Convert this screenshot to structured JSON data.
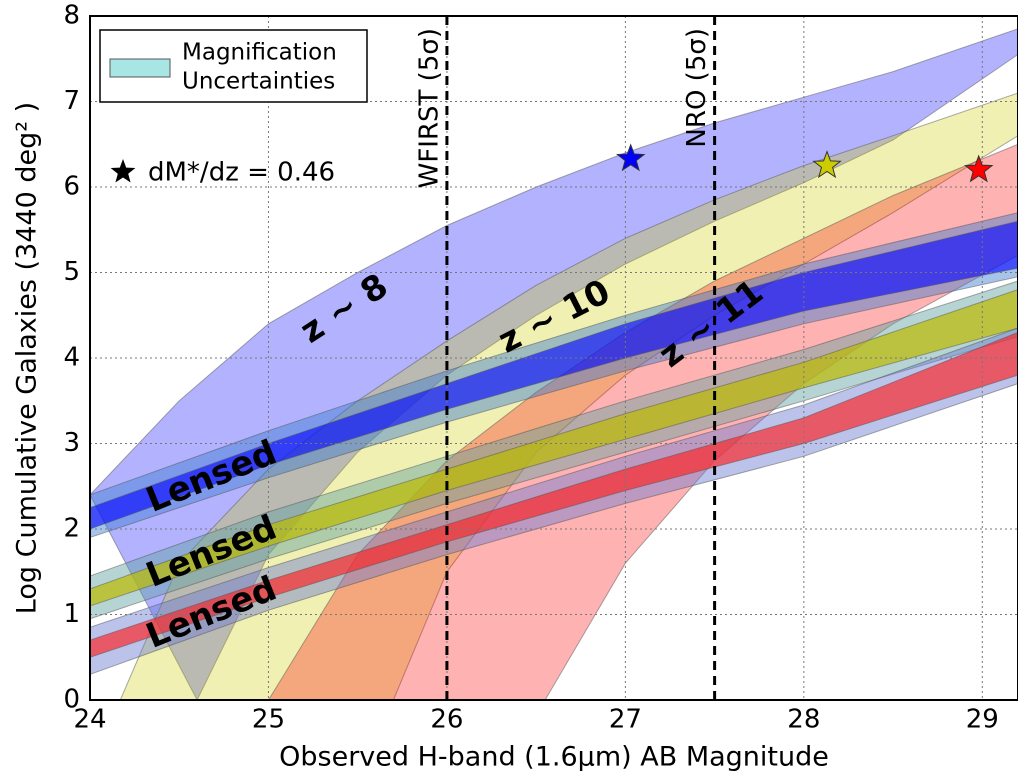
{
  "chart_data": {
    "type": "band",
    "xlabel": "Observed H-band (1.6μm) AB Magnitude",
    "ylabel": "Log Cumulative Galaxies (3440 deg² )",
    "xlim": [
      24,
      29.2
    ],
    "ylim": [
      0,
      8
    ],
    "xticks": [
      24,
      25,
      26,
      27,
      28,
      29
    ],
    "yticks": [
      0,
      1,
      2,
      3,
      4,
      5,
      6,
      7,
      8
    ],
    "grid": true,
    "legend": {
      "position": "upper left",
      "lines": [
        "Magnification",
        "Uncertainties"
      ],
      "color": "#a8e6e6"
    },
    "series": [
      {
        "color": "#0000ff",
        "alpha": 0.3,
        "x_upper": [
          24,
          24.5,
          25,
          25.5,
          26,
          26.5,
          27,
          27.5,
          28,
          28.5,
          29.2
        ],
        "upper": [
          2.4,
          3.5,
          4.4,
          5.0,
          5.55,
          6.0,
          6.4,
          6.75,
          7.05,
          7.35,
          7.85
        ],
        "x_lower": [
          24.6,
          25,
          25.5,
          26,
          26.5,
          27,
          27.5,
          28,
          28.5,
          29.2
        ],
        "lower": [
          0,
          1.7,
          2.9,
          3.8,
          4.5,
          5.1,
          5.6,
          6.05,
          6.55,
          7.55
        ]
      },
      {
        "color": "#cccc00",
        "alpha": 0.3,
        "x_upper": [
          24.17,
          24.5,
          25,
          25.5,
          26,
          26.5,
          27,
          27.5,
          28,
          28.5,
          29.2
        ],
        "upper": [
          0,
          1.6,
          2.7,
          3.5,
          4.2,
          4.85,
          5.4,
          5.85,
          6.25,
          6.6,
          7.1
        ],
        "x_lower": [
          25.7,
          26,
          26.5,
          27,
          27.5,
          28,
          28.5,
          29.2
        ],
        "lower": [
          0,
          1.5,
          2.9,
          3.8,
          4.5,
          5.1,
          5.7,
          6.6
        ]
      },
      {
        "color": "#ff0000",
        "alpha": 0.3,
        "x_upper": [
          25.0,
          25.5,
          26,
          26.5,
          27,
          27.5,
          28,
          28.5,
          29.2
        ],
        "upper": [
          0,
          1.7,
          2.8,
          3.6,
          4.3,
          4.9,
          5.4,
          5.9,
          6.5
        ],
        "x_lower": [
          26.55,
          27,
          27.5,
          28,
          28.5,
          29.2
        ],
        "lower": [
          0,
          1.6,
          2.8,
          3.7,
          4.4,
          5.2
        ]
      },
      {
        "color": "#3a7ad0",
        "alpha": 0.45,
        "x_upper": [
          24,
          25,
          26,
          27,
          28,
          29.2
        ],
        "upper": [
          2.4,
          3.15,
          3.85,
          4.5,
          5.1,
          5.7
        ],
        "x_lower": [
          24,
          25,
          26,
          27,
          28,
          29.2
        ],
        "lower": [
          1.9,
          2.6,
          3.25,
          3.85,
          4.4,
          4.95
        ]
      },
      {
        "color": "#0000ff",
        "alpha": 0.6,
        "x_upper": [
          24,
          25,
          26,
          27,
          28,
          29.2
        ],
        "upper": [
          2.25,
          3.0,
          3.7,
          4.4,
          5.0,
          5.6
        ],
        "x_lower": [
          24,
          25,
          26,
          27,
          28,
          29.2
        ],
        "lower": [
          2.0,
          2.75,
          3.4,
          4.0,
          4.55,
          5.05
        ]
      },
      {
        "color": "#5fa0a0",
        "alpha": 0.45,
        "x_upper": [
          24,
          25,
          26,
          27,
          28,
          29.2
        ],
        "upper": [
          1.45,
          2.2,
          2.85,
          3.5,
          4.1,
          4.9
        ],
        "x_lower": [
          24,
          25,
          26,
          27,
          28,
          29.2
        ],
        "lower": [
          0.95,
          1.65,
          2.3,
          2.9,
          3.5,
          4.25
        ]
      },
      {
        "color": "#bbbb00",
        "alpha": 0.7,
        "x_upper": [
          24,
          25,
          26,
          27,
          28,
          29.2
        ],
        "upper": [
          1.3,
          2.05,
          2.7,
          3.35,
          3.95,
          4.8
        ],
        "x_lower": [
          24,
          25,
          26,
          27,
          28,
          29.2
        ],
        "lower": [
          1.1,
          1.8,
          2.45,
          3.05,
          3.65,
          4.35
        ]
      },
      {
        "color": "#6a7ad0",
        "alpha": 0.45,
        "x_upper": [
          24,
          25,
          26,
          27,
          28,
          29.2
        ],
        "upper": [
          0.85,
          1.55,
          2.2,
          2.85,
          3.45,
          4.35
        ],
        "x_lower": [
          24,
          25,
          26,
          27,
          28,
          29.2
        ],
        "lower": [
          0.3,
          1.05,
          1.7,
          2.3,
          2.85,
          3.7
        ]
      },
      {
        "color": "#ff2020",
        "alpha": 0.65,
        "x_upper": [
          24,
          25,
          26,
          27,
          28,
          29.2
        ],
        "upper": [
          0.7,
          1.4,
          2.05,
          2.7,
          3.3,
          4.3
        ],
        "x_lower": [
          24,
          25,
          26,
          27,
          28,
          29.2
        ],
        "lower": [
          0.5,
          1.2,
          1.85,
          2.45,
          3.0,
          3.8
        ]
      }
    ],
    "stars": [
      {
        "x": 27.03,
        "y": 6.33,
        "color": "#0000ff"
      },
      {
        "x": 28.13,
        "y": 6.25,
        "color": "#cccc00"
      },
      {
        "x": 28.98,
        "y": 6.2,
        "color": "#ff0000"
      }
    ],
    "vlines": [
      {
        "x": 26,
        "label": "WFIRST (5σ)"
      },
      {
        "x": 27.5,
        "label": "NRO (5σ)"
      }
    ],
    "labels": [
      "z ~ 8",
      "z ~ 10",
      "z ~ 11",
      "Lensed",
      "Lensed",
      "Lensed"
    ],
    "annotation": "dM*/dz = 0.46"
  }
}
